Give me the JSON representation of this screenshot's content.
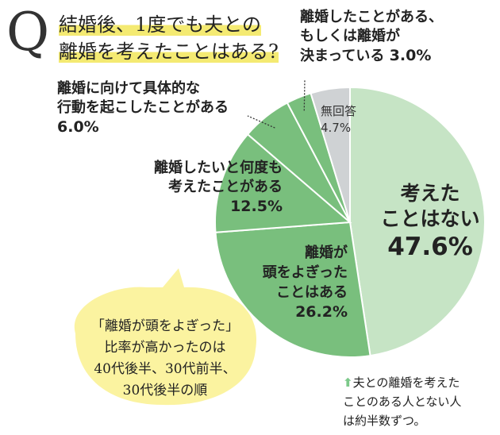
{
  "question": {
    "letter": "Q",
    "line1": "結婚後、1度でも夫との",
    "line2": "離婚を考えたことはある?"
  },
  "chart_data": {
    "type": "pie",
    "slices": [
      {
        "label_lines": [
          "考えた",
          "ことはない"
        ],
        "value": 47.6,
        "value_text": "47.6%",
        "color": "#c6e4c5"
      },
      {
        "label_lines": [
          "離婚が",
          "頭をよぎった",
          "ことはある"
        ],
        "value": 26.2,
        "value_text": "26.2%",
        "color": "#79bf7d"
      },
      {
        "label_lines": [
          "離婚したいと何度も",
          "考えたことがある"
        ],
        "value": 12.5,
        "value_text": "12.5%",
        "color": "#79bf7d"
      },
      {
        "label_lines": [
          "離婚に向けて具体的な",
          "行動を起こしたことがある"
        ],
        "value": 6.0,
        "value_text": "6.0%",
        "color": "#79bf7d"
      },
      {
        "label_lines": [
          "離婚したことがある、",
          "もしくは離婚が",
          "決まっている"
        ],
        "value": 3.0,
        "value_text": "3.0%",
        "color": "#79bf7d"
      },
      {
        "label_lines": [
          "無回答"
        ],
        "value": 4.7,
        "value_text": "4.7%",
        "color": "#cfd2d4"
      }
    ]
  },
  "bubble": {
    "line1": "「離婚が頭をよぎった」",
    "line2": "比率が高かったのは",
    "line3": "40代後半、30代前半、",
    "line4": "30代後半の順"
  },
  "note": {
    "arrow": "⬆",
    "line1": "夫との離婚を考えた",
    "line2": "ことのある人とない人",
    "line3": "は約半数ずつ。"
  },
  "colors": {
    "highlight": "#f4ea72",
    "bubble": "#fbf3a0"
  }
}
